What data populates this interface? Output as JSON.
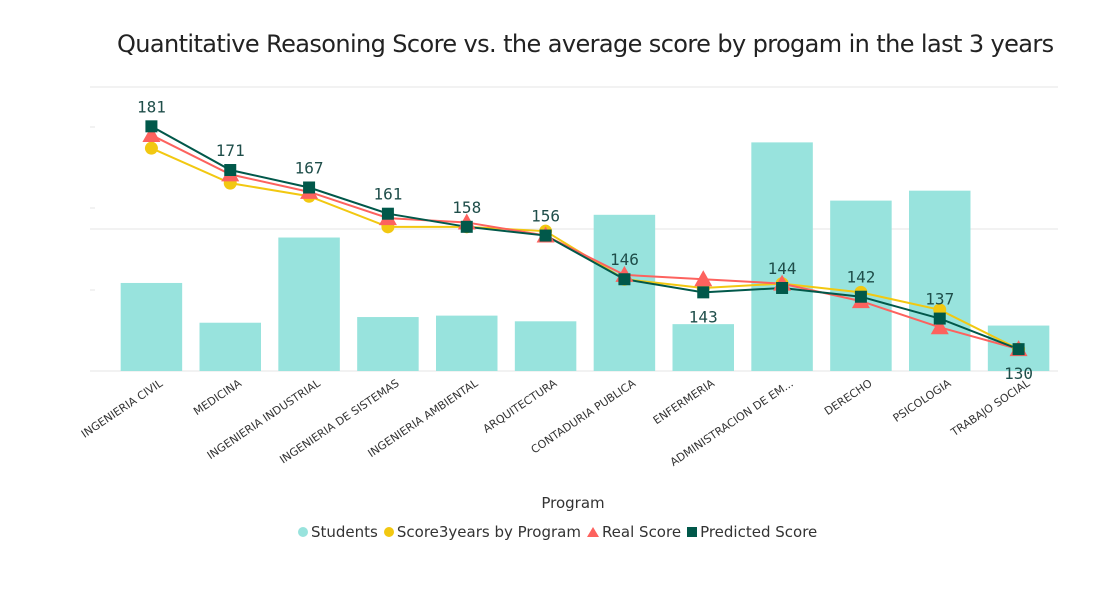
{
  "chart_data": {
    "type": "bar",
    "title": "Quantitative Reasoning Score vs. the average score by progam in the last 3 years",
    "xlabel": "Program",
    "ylabel": "",
    "categories": [
      "INGENIERIA CIVIL",
      "MEDICINA",
      "INGENIERIA INDUSTRIAL",
      "INGENIERIA DE SISTEMAS",
      "INGENIERIA AMBIENTAL",
      "ARQUITECTURA",
      "CONTADURIA PUBLICA",
      "ENFERMERIA",
      "ADMINISTRACION DE EM...",
      "DERECHO",
      "PSICOLOGIA",
      "TRABAJO SOCIAL"
    ],
    "bar_series": {
      "name": "Students",
      "color": "#98E3DD",
      "values": [
        62,
        34,
        94,
        38,
        39,
        35,
        110,
        33,
        161,
        120,
        127,
        32
      ],
      "ylim": [
        0,
        200
      ]
    },
    "line_ylim": [
      125,
      190
    ],
    "series": [
      {
        "name": "Score3years by Program",
        "marker": "circle",
        "color": "#F2C811",
        "line_color": "#F2C811",
        "values": [
          176,
          168,
          165,
          158,
          158,
          157,
          146,
          144,
          145,
          143,
          139,
          130
        ]
      },
      {
        "name": "Real Score",
        "marker": "triangle",
        "color": "#FD625E",
        "line_color": "#FD625E",
        "values": [
          179,
          170,
          166,
          160,
          159,
          156,
          147,
          146,
          145,
          141,
          135,
          130
        ]
      },
      {
        "name": "Predicted Score",
        "marker": "square",
        "color": "#01584A",
        "line_color": "#01584A",
        "values": [
          181,
          171,
          167,
          161,
          158,
          156,
          146,
          143,
          144,
          142,
          137,
          130
        ]
      }
    ],
    "data_labels": [
      "181",
      "171",
      "167",
      "161",
      "158",
      "156",
      "146",
      "143",
      "144",
      "142",
      "137",
      "130"
    ],
    "grid": true,
    "legend_position": "bottom"
  }
}
